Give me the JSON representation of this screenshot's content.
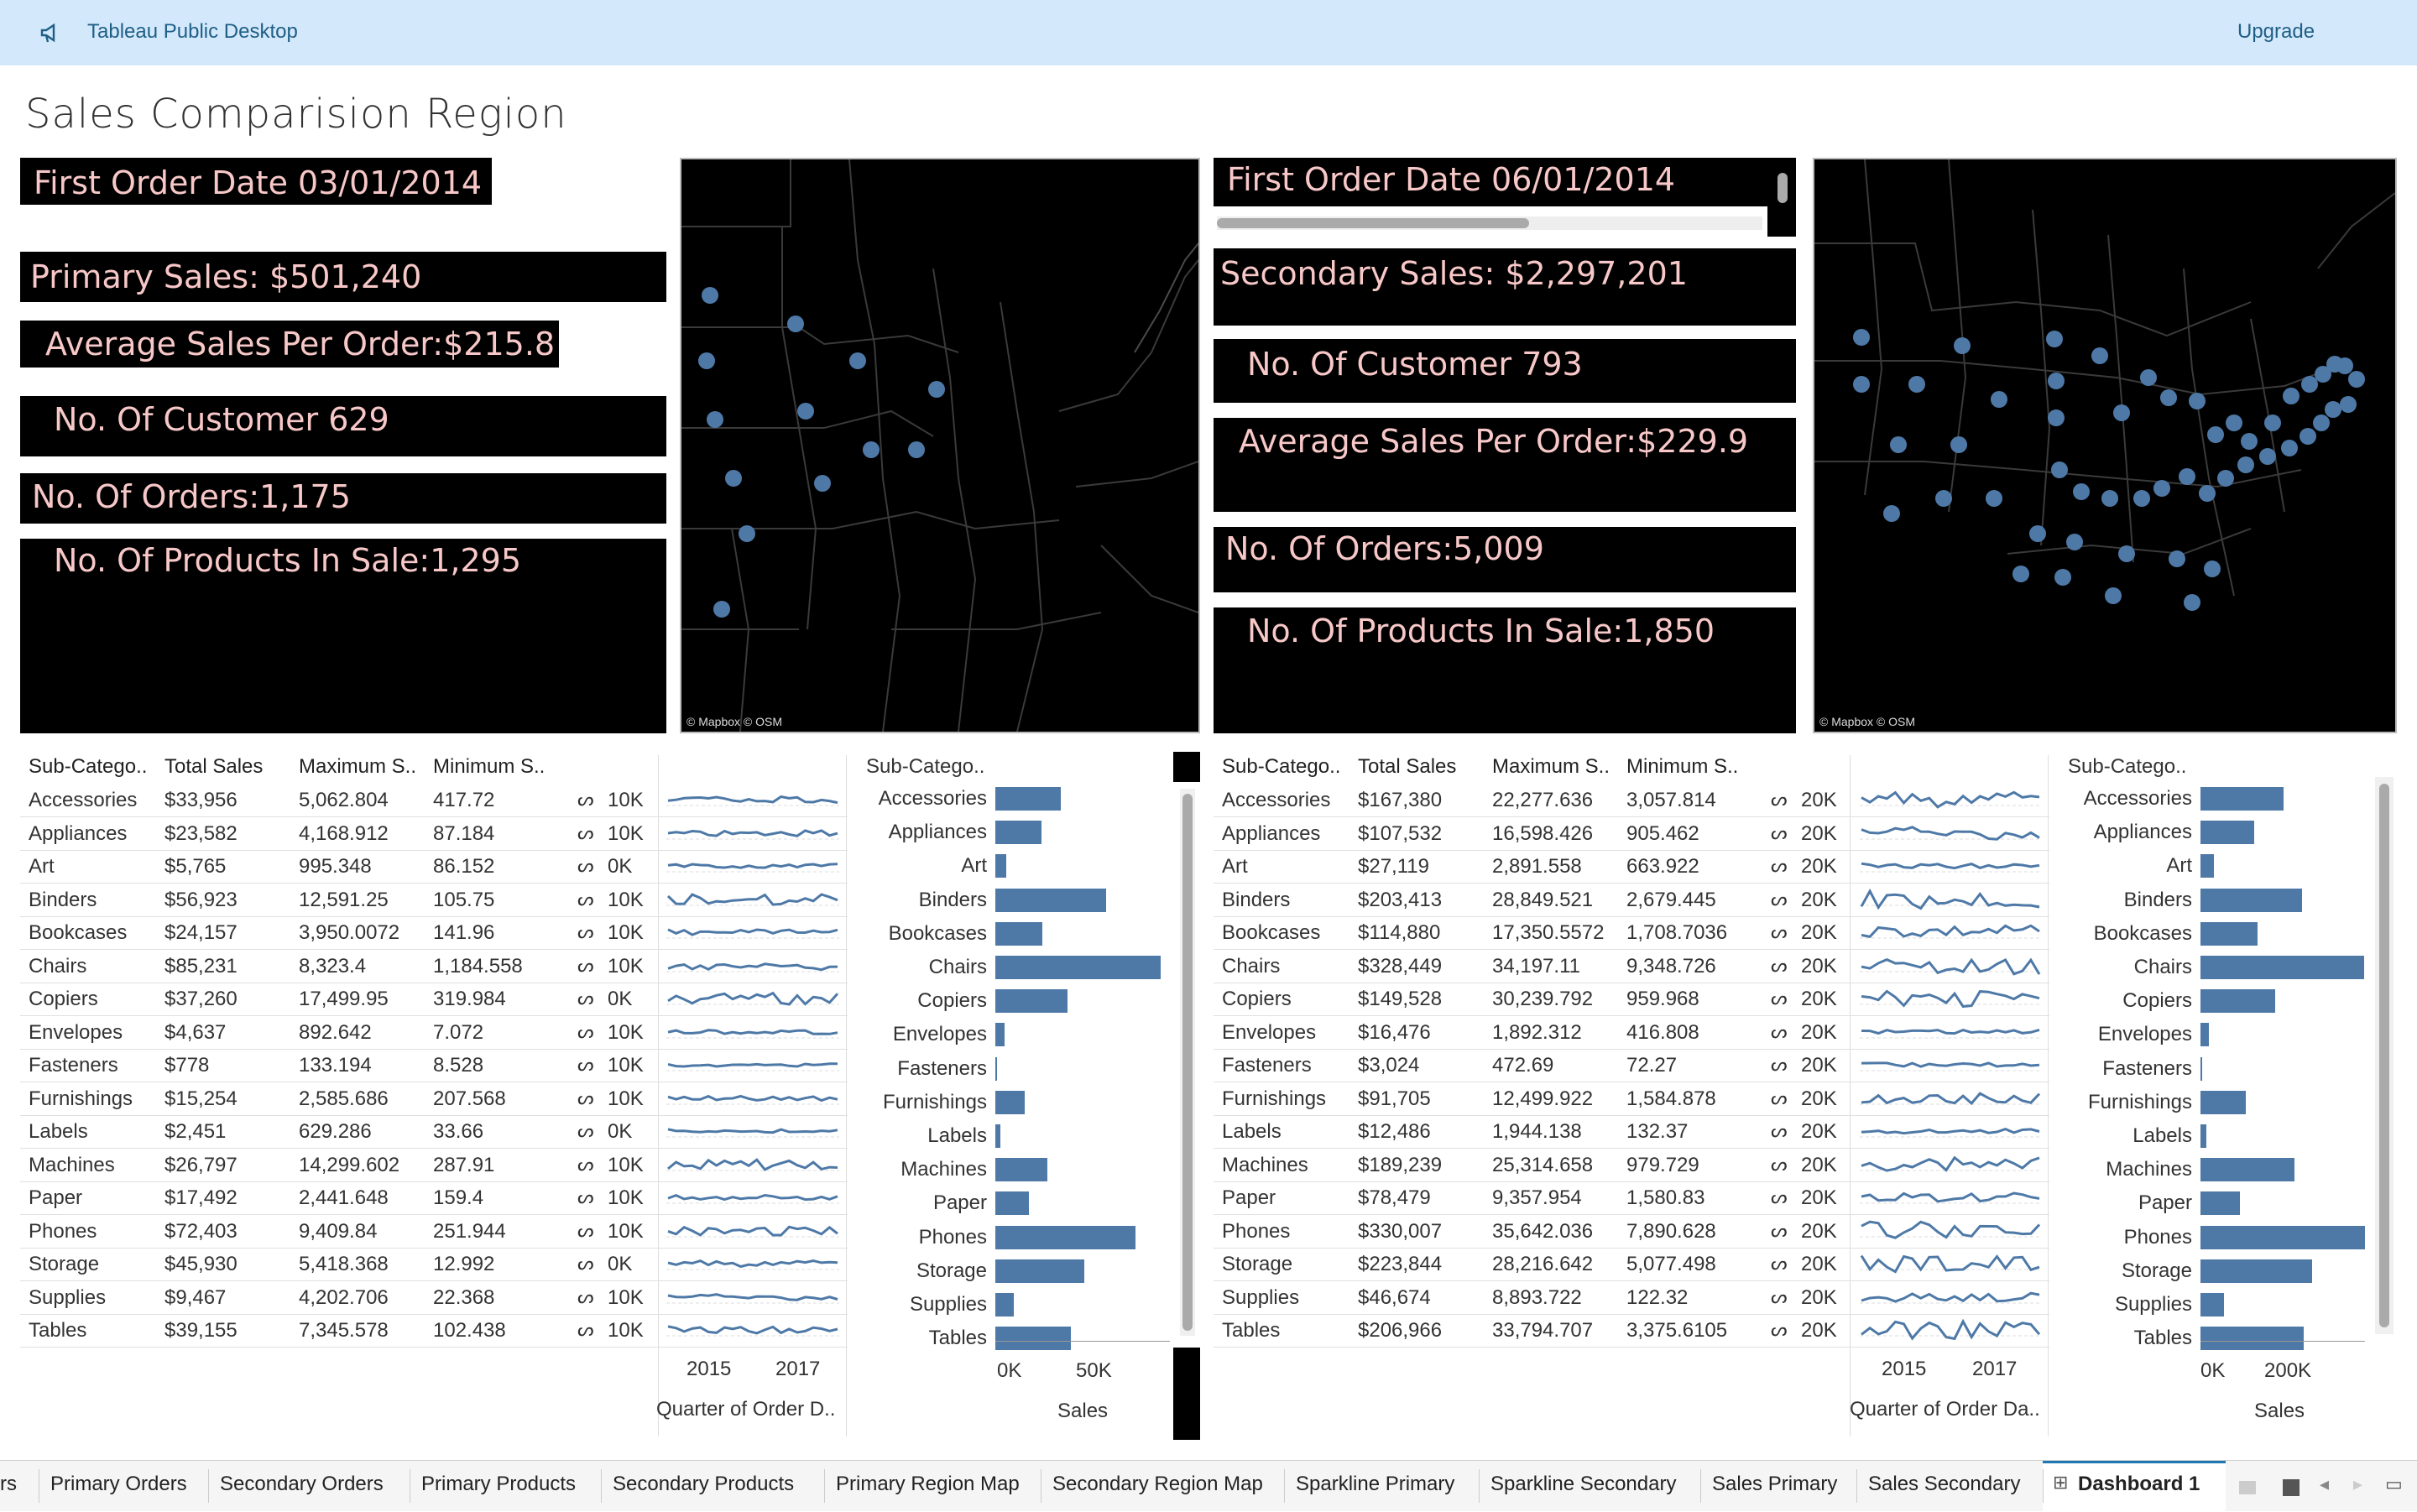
{
  "topbar": {
    "title": "Tableau Public Desktop",
    "upgrade": "Upgrade"
  },
  "dashboard_title": "Sales Comparision Region",
  "primary": {
    "first_order": "First Order Date 03/01/2014",
    "sales": "Primary Sales: $501,240",
    "avg": "Average Sales Per Order:$215.8",
    "customers": "No. Of Customer 629",
    "orders": "No. Of Orders:1,175",
    "products": "No. Of Products In Sale:1,295"
  },
  "secondary": {
    "first_order": "First Order Date 06/01/2014",
    "sales": "Secondary Sales: $2,297,201",
    "customers": "No. Of Customer 793",
    "avg": "Average Sales Per Order:$229.9",
    "orders": "No. Of Orders:5,009",
    "products": "No. Of Products In Sale:1,850"
  },
  "map_attribution": "© Mapbox © OSM",
  "table_headers": [
    "Sub-Catego..",
    "Total Sales",
    "Maximum S..",
    "Minimum S.."
  ],
  "primary_rows": [
    [
      "Accessories",
      "$33,956",
      "5,062.804",
      "417.72",
      "10K"
    ],
    [
      "Appliances",
      "$23,582",
      "4,168.912",
      "87.184",
      "10K"
    ],
    [
      "Art",
      "$5,765",
      "995.348",
      "86.152",
      "0K"
    ],
    [
      "Binders",
      "$56,923",
      "12,591.25",
      "105.75",
      "10K"
    ],
    [
      "Bookcases",
      "$24,157",
      "3,950.0072",
      "141.96",
      "10K"
    ],
    [
      "Chairs",
      "$85,231",
      "8,323.4",
      "1,184.558",
      "10K"
    ],
    [
      "Copiers",
      "$37,260",
      "17,499.95",
      "319.984",
      "0K"
    ],
    [
      "Envelopes",
      "$4,637",
      "892.642",
      "7.072",
      "10K"
    ],
    [
      "Fasteners",
      "$778",
      "133.194",
      "8.528",
      "10K"
    ],
    [
      "Furnishings",
      "$15,254",
      "2,585.686",
      "207.568",
      "10K"
    ],
    [
      "Labels",
      "$2,451",
      "629.286",
      "33.66",
      "0K"
    ],
    [
      "Machines",
      "$26,797",
      "14,299.602",
      "287.91",
      "10K"
    ],
    [
      "Paper",
      "$17,492",
      "2,441.648",
      "159.4",
      "10K"
    ],
    [
      "Phones",
      "$72,403",
      "9,409.84",
      "251.944",
      "10K"
    ],
    [
      "Storage",
      "$45,930",
      "5,418.368",
      "12.992",
      "0K"
    ],
    [
      "Supplies",
      "$9,467",
      "4,202.706",
      "22.368",
      "10K"
    ],
    [
      "Tables",
      "$39,155",
      "7,345.578",
      "102.438",
      "10K"
    ]
  ],
  "secondary_rows": [
    [
      "Accessories",
      "$167,380",
      "22,277.636",
      "3,057.814",
      "20K"
    ],
    [
      "Appliances",
      "$107,532",
      "16,598.426",
      "905.462",
      "20K"
    ],
    [
      "Art",
      "$27,119",
      "2,891.558",
      "663.922",
      "20K"
    ],
    [
      "Binders",
      "$203,413",
      "28,849.521",
      "2,679.445",
      "20K"
    ],
    [
      "Bookcases",
      "$114,880",
      "17,350.5572",
      "1,708.7036",
      "20K"
    ],
    [
      "Chairs",
      "$328,449",
      "34,197.11",
      "9,348.726",
      "20K"
    ],
    [
      "Copiers",
      "$149,528",
      "30,239.792",
      "959.968",
      "20K"
    ],
    [
      "Envelopes",
      "$16,476",
      "1,892.312",
      "416.808",
      "20K"
    ],
    [
      "Fasteners",
      "$3,024",
      "472.69",
      "72.27",
      "20K"
    ],
    [
      "Furnishings",
      "$91,705",
      "12,499.922",
      "1,584.878",
      "20K"
    ],
    [
      "Labels",
      "$12,486",
      "1,944.138",
      "132.37",
      "20K"
    ],
    [
      "Machines",
      "$189,239",
      "25,314.658",
      "979.729",
      "20K"
    ],
    [
      "Paper",
      "$78,479",
      "9,357.954",
      "1,580.83",
      "20K"
    ],
    [
      "Phones",
      "$330,007",
      "35,642.036",
      "7,890.628",
      "20K"
    ],
    [
      "Storage",
      "$223,844",
      "28,216.642",
      "5,077.498",
      "20K"
    ],
    [
      "Supplies",
      "$46,674",
      "8,893.722",
      "122.32",
      "20K"
    ],
    [
      "Tables",
      "$206,966",
      "33,794.707",
      "3,375.6105",
      "20K"
    ]
  ],
  "spark_axis": {
    "ticks": [
      "2015",
      "2017"
    ],
    "primary_title": "Quarter of Order D..",
    "secondary_title": "Quarter of Order Da.."
  },
  "bar_header": "Sub-Catego..",
  "bar_axis_title": "Sales",
  "chart_data": [
    {
      "type": "bar",
      "title": "",
      "categories": [
        "Accessories",
        "Appliances",
        "Art",
        "Binders",
        "Bookcases",
        "Chairs",
        "Copiers",
        "Envelopes",
        "Fasteners",
        "Furnishings",
        "Labels",
        "Machines",
        "Paper",
        "Phones",
        "Storage",
        "Supplies",
        "Tables"
      ],
      "values": [
        33956,
        23582,
        5765,
        56923,
        24157,
        85231,
        37260,
        4637,
        778,
        15254,
        2451,
        26797,
        17492,
        72403,
        45930,
        9467,
        39155
      ],
      "xlabel": "Sales",
      "xticks": [
        "0K",
        "50K"
      ],
      "xlim": [
        0,
        90000
      ]
    },
    {
      "type": "bar",
      "title": "",
      "categories": [
        "Accessories",
        "Appliances",
        "Art",
        "Binders",
        "Bookcases",
        "Chairs",
        "Copiers",
        "Envelopes",
        "Fasteners",
        "Furnishings",
        "Labels",
        "Machines",
        "Paper",
        "Phones",
        "Storage",
        "Supplies",
        "Tables"
      ],
      "values": [
        167380,
        107532,
        27119,
        203413,
        114880,
        328449,
        149528,
        16476,
        3024,
        91705,
        12486,
        189239,
        78479,
        330007,
        223844,
        46674,
        206966
      ],
      "xlabel": "Sales",
      "xticks": [
        "0K",
        "200K"
      ],
      "xlim": [
        0,
        330000
      ]
    }
  ],
  "tabs": [
    "rs",
    "Primary Orders",
    "Secondary Orders",
    "Primary Products",
    "Secondary Products",
    "Primary Region Map",
    "Secondary Region Map",
    "Sparkline Primary",
    "Sparkline Secondary",
    "Sales Primary",
    "Sales Secondary",
    "Dashboard 1"
  ],
  "colors": {
    "accent": "#4e79a7",
    "kpi_text": "#f8c8c8",
    "topbar": "#d3e8fb"
  }
}
